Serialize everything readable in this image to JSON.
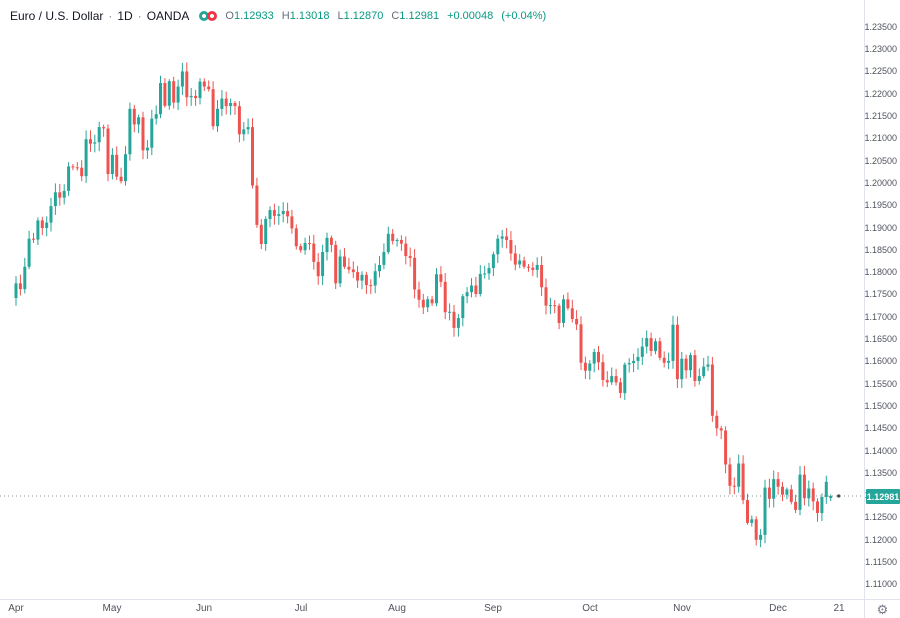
{
  "legend": {
    "symbol": "Euro / U.S. Dollar",
    "separator": "·",
    "interval": "1D",
    "exchange": "OANDA",
    "ohlc": {
      "open_label": "O",
      "open": "1.12933",
      "high_label": "H",
      "high": "1.13018",
      "low_label": "L",
      "low": "1.12870",
      "close_label": "C",
      "close": "1.12981",
      "change": "+0.00048",
      "change_pct": "(+0.04%)"
    }
  },
  "icons": {
    "settings": "⚙"
  },
  "colors": {
    "up": "#26a69a",
    "down": "#ef5350",
    "legend_value_text": "#089981",
    "axis_text": "#50535e",
    "price_line": "#787b86",
    "price_tag_bg": "#26a69a"
  },
  "price_axis": {
    "ticks": [
      "1.23500",
      "1.23000",
      "1.22500",
      "1.22000",
      "1.21500",
      "1.21000",
      "1.20500",
      "1.20000",
      "1.19500",
      "1.19000",
      "1.18500",
      "1.18000",
      "1.17500",
      "1.17000",
      "1.16500",
      "1.16000",
      "1.15500",
      "1.15000",
      "1.14500",
      "1.14000",
      "1.13500",
      "1.13000",
      "1.12500",
      "1.12000",
      "1.11500",
      "1.11000"
    ],
    "last_price_label": "1.12981"
  },
  "time_axis": {
    "ticks": [
      {
        "label": "Apr",
        "index": 0
      },
      {
        "label": "May",
        "index": 22
      },
      {
        "label": "Jun",
        "index": 43
      },
      {
        "label": "Jul",
        "index": 65
      },
      {
        "label": "Aug",
        "index": 87
      },
      {
        "label": "Sep",
        "index": 109
      },
      {
        "label": "Oct",
        "index": 131
      },
      {
        "label": "Nov",
        "index": 152
      },
      {
        "label": "Dec",
        "index": 174
      },
      {
        "label": "21",
        "index": 188
      }
    ]
  },
  "chart_data": {
    "type": "candlestick",
    "title": "Euro / U.S. Dollar",
    "interval": "1D",
    "source": "OANDA",
    "y_domain": [
      1.1065,
      1.241
    ],
    "first_open": 1.1742,
    "closes": [
      1.1775,
      1.1762,
      1.1812,
      1.1875,
      1.1873,
      1.1916,
      1.1899,
      1.1911,
      1.1948,
      1.1979,
      1.1967,
      1.1982,
      1.2037,
      1.2035,
      1.2034,
      1.2015,
      1.2098,
      1.2088,
      1.2091,
      1.2125,
      1.2122,
      1.202,
      1.2063,
      1.2014,
      1.2004,
      1.2064,
      1.2166,
      1.2131,
      1.2147,
      1.2073,
      1.2079,
      1.2144,
      1.2154,
      1.2224,
      1.2173,
      1.2228,
      1.218,
      1.2216,
      1.225,
      1.2192,
      1.2195,
      1.219,
      1.2227,
      1.2216,
      1.221,
      1.2127,
      1.2166,
      1.2189,
      1.2172,
      1.2179,
      1.2172,
      1.2109,
      1.212,
      1.2125,
      1.1994,
      1.1906,
      1.1863,
      1.1919,
      1.1939,
      1.1926,
      1.193,
      1.1937,
      1.1925,
      1.1898,
      1.1858,
      1.1849,
      1.1865,
      1.1864,
      1.1823,
      1.1791,
      1.1845,
      1.1877,
      1.1861,
      1.1775,
      1.1835,
      1.1812,
      1.1806,
      1.18,
      1.1781,
      1.1794,
      1.1771,
      1.177,
      1.1802,
      1.1816,
      1.1845,
      1.1886,
      1.187,
      1.1872,
      1.1864,
      1.1836,
      1.1832,
      1.1761,
      1.1738,
      1.1721,
      1.1739,
      1.173,
      1.1795,
      1.1778,
      1.171,
      1.1711,
      1.1675,
      1.1697,
      1.1746,
      1.1755,
      1.177,
      1.1751,
      1.1796,
      1.1797,
      1.1809,
      1.184,
      1.1875,
      1.188,
      1.1872,
      1.1842,
      1.1817,
      1.1826,
      1.1812,
      1.181,
      1.1805,
      1.1816,
      1.1766,
      1.1725,
      1.1726,
      1.1725,
      1.1686,
      1.1739,
      1.1719,
      1.1695,
      1.1683,
      1.1597,
      1.1579,
      1.1595,
      1.1621,
      1.1598,
      1.1558,
      1.1553,
      1.1567,
      1.1553,
      1.1529,
      1.1593,
      1.1596,
      1.1601,
      1.161,
      1.1633,
      1.1652,
      1.1623,
      1.1645,
      1.1608,
      1.1597,
      1.1601,
      1.1682,
      1.156,
      1.1606,
      1.158,
      1.1614,
      1.1556,
      1.1567,
      1.1588,
      1.1593,
      1.1478,
      1.145,
      1.1445,
      1.1369,
      1.1321,
      1.1319,
      1.1371,
      1.1289,
      1.1238,
      1.1246,
      1.12,
      1.1211,
      1.1317,
      1.1292,
      1.1336,
      1.1319,
      1.1301,
      1.1313,
      1.1285,
      1.1267,
      1.1346,
      1.1293,
      1.1315,
      1.1286,
      1.126,
      1.1296,
      1.133,
      1.12981
    ],
    "month_start_indices": {
      "Apr": 0,
      "May": 22,
      "Jun": 43,
      "Jul": 65,
      "Aug": 87,
      "Sep": 109,
      "Oct": 131,
      "Nov": 152,
      "Dec": 174
    },
    "last_candle": {
      "open": 1.12933,
      "high": 1.13018,
      "low": 1.1287,
      "close": 1.12981
    }
  }
}
